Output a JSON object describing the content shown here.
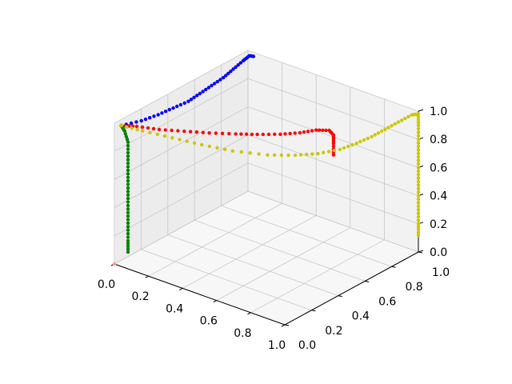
{
  "chart_data": {
    "type": "scatter",
    "projection": "3d",
    "title": "",
    "xlabel": "",
    "ylabel": "",
    "zlabel": "",
    "xlim": [
      0,
      1
    ],
    "ylim": [
      0,
      1
    ],
    "zlim": [
      0,
      1
    ],
    "grid": true,
    "ticks": {
      "x": [
        "0.0",
        "0.2",
        "0.4",
        "0.6",
        "0.8",
        "1.0"
      ],
      "y": [
        "0.0",
        "0.2",
        "0.4",
        "0.6",
        "0.8",
        "1.0"
      ],
      "z": [
        "0.0",
        "0.2",
        "0.4",
        "0.6",
        "0.8",
        "1.0"
      ]
    },
    "colors": {
      "pane_back": "#f2f2f2",
      "pane_side": "#ececec",
      "pane_floor": "#f7f7f7",
      "grid": "#c8c8c8",
      "axis": "#000000"
    },
    "series": [
      {
        "color": "#0000ff",
        "points": [
          {
            "x": 0.04,
            "y": 0.0,
            "z": 1.0
          },
          {
            "x": 0.08,
            "y": 0.1,
            "z": 1.0
          },
          {
            "x": 0.1,
            "y": 0.2,
            "z": 1.0
          },
          {
            "x": 0.11,
            "y": 0.3,
            "z": 1.0
          },
          {
            "x": 0.12,
            "y": 0.4,
            "z": 1.0
          },
          {
            "x": 0.11,
            "y": 0.5,
            "z": 1.0
          },
          {
            "x": 0.1,
            "y": 0.6,
            "z": 1.0
          },
          {
            "x": 0.09,
            "y": 0.7,
            "z": 1.0
          },
          {
            "x": 0.07,
            "y": 0.8,
            "z": 1.0
          },
          {
            "x": 0.05,
            "y": 0.9,
            "z": 1.0
          },
          {
            "x": 0.04,
            "y": 0.96,
            "z": 1.0
          },
          {
            "x": 0.04,
            "y": 0.99,
            "z": 0.98
          }
        ]
      },
      {
        "color": "#ff0000",
        "points": [
          {
            "x": 0.04,
            "y": 0.0,
            "z": 1.0
          },
          {
            "x": 0.1,
            "y": 0.04,
            "z": 1.0
          },
          {
            "x": 0.2,
            "y": 0.08,
            "z": 1.0
          },
          {
            "x": 0.3,
            "y": 0.14,
            "z": 1.0
          },
          {
            "x": 0.4,
            "y": 0.2,
            "z": 1.0
          },
          {
            "x": 0.5,
            "y": 0.27,
            "z": 1.0
          },
          {
            "x": 0.58,
            "y": 0.33,
            "z": 1.0
          },
          {
            "x": 0.66,
            "y": 0.4,
            "z": 1.0
          },
          {
            "x": 0.72,
            "y": 0.47,
            "z": 1.0
          },
          {
            "x": 0.76,
            "y": 0.54,
            "z": 1.0
          },
          {
            "x": 0.79,
            "y": 0.6,
            "z": 0.98
          },
          {
            "x": 0.8,
            "y": 0.62,
            "z": 0.94
          },
          {
            "x": 0.8,
            "y": 0.62,
            "z": 0.88
          },
          {
            "x": 0.8,
            "y": 0.62,
            "z": 0.8
          }
        ]
      },
      {
        "color": "#008000",
        "points": [
          {
            "x": 0.04,
            "y": 0.0,
            "z": 1.0
          },
          {
            "x": 0.06,
            "y": 0.0,
            "z": 0.97
          },
          {
            "x": 0.08,
            "y": 0.0,
            "z": 0.9
          },
          {
            "x": 0.08,
            "y": 0.0,
            "z": 0.8
          },
          {
            "x": 0.08,
            "y": 0.0,
            "z": 0.7
          },
          {
            "x": 0.08,
            "y": 0.0,
            "z": 0.6
          },
          {
            "x": 0.08,
            "y": 0.0,
            "z": 0.5
          },
          {
            "x": 0.08,
            "y": 0.0,
            "z": 0.4
          },
          {
            "x": 0.08,
            "y": 0.0,
            "z": 0.3
          },
          {
            "x": 0.08,
            "y": 0.0,
            "z": 0.2
          },
          {
            "x": 0.08,
            "y": 0.0,
            "z": 0.12
          }
        ]
      },
      {
        "color": "#c8c800",
        "points": [
          {
            "x": 0.04,
            "y": 0.0,
            "z": 1.0
          },
          {
            "x": 0.15,
            "y": 0.02,
            "z": 1.0
          },
          {
            "x": 0.3,
            "y": 0.05,
            "z": 1.0
          },
          {
            "x": 0.45,
            "y": 0.08,
            "z": 1.0
          },
          {
            "x": 0.6,
            "y": 0.12,
            "z": 1.0
          },
          {
            "x": 0.75,
            "y": 0.19,
            "z": 1.0
          },
          {
            "x": 0.85,
            "y": 0.27,
            "z": 1.0
          },
          {
            "x": 0.92,
            "y": 0.35,
            "z": 1.0
          },
          {
            "x": 0.97,
            "y": 0.45,
            "z": 1.0
          },
          {
            "x": 0.99,
            "y": 0.55,
            "z": 1.0
          },
          {
            "x": 1.0,
            "y": 0.65,
            "z": 1.0
          },
          {
            "x": 1.0,
            "y": 0.75,
            "z": 1.0
          },
          {
            "x": 1.0,
            "y": 0.85,
            "z": 1.0
          },
          {
            "x": 1.0,
            "y": 0.95,
            "z": 1.0
          },
          {
            "x": 1.0,
            "y": 1.0,
            "z": 0.98
          },
          {
            "x": 1.0,
            "y": 1.0,
            "z": 0.9
          },
          {
            "x": 1.0,
            "y": 1.0,
            "z": 0.8
          },
          {
            "x": 1.0,
            "y": 1.0,
            "z": 0.7
          },
          {
            "x": 1.0,
            "y": 1.0,
            "z": 0.6
          },
          {
            "x": 1.0,
            "y": 1.0,
            "z": 0.5
          },
          {
            "x": 1.0,
            "y": 1.0,
            "z": 0.4
          },
          {
            "x": 1.0,
            "y": 1.0,
            "z": 0.3
          },
          {
            "x": 1.0,
            "y": 1.0,
            "z": 0.2
          },
          {
            "x": 1.0,
            "y": 1.0,
            "z": 0.12
          }
        ]
      },
      {
        "color": "#ff9999",
        "points": [
          {
            "x": 0.0,
            "y": 0.0,
            "z": 0.0
          }
        ]
      }
    ]
  }
}
